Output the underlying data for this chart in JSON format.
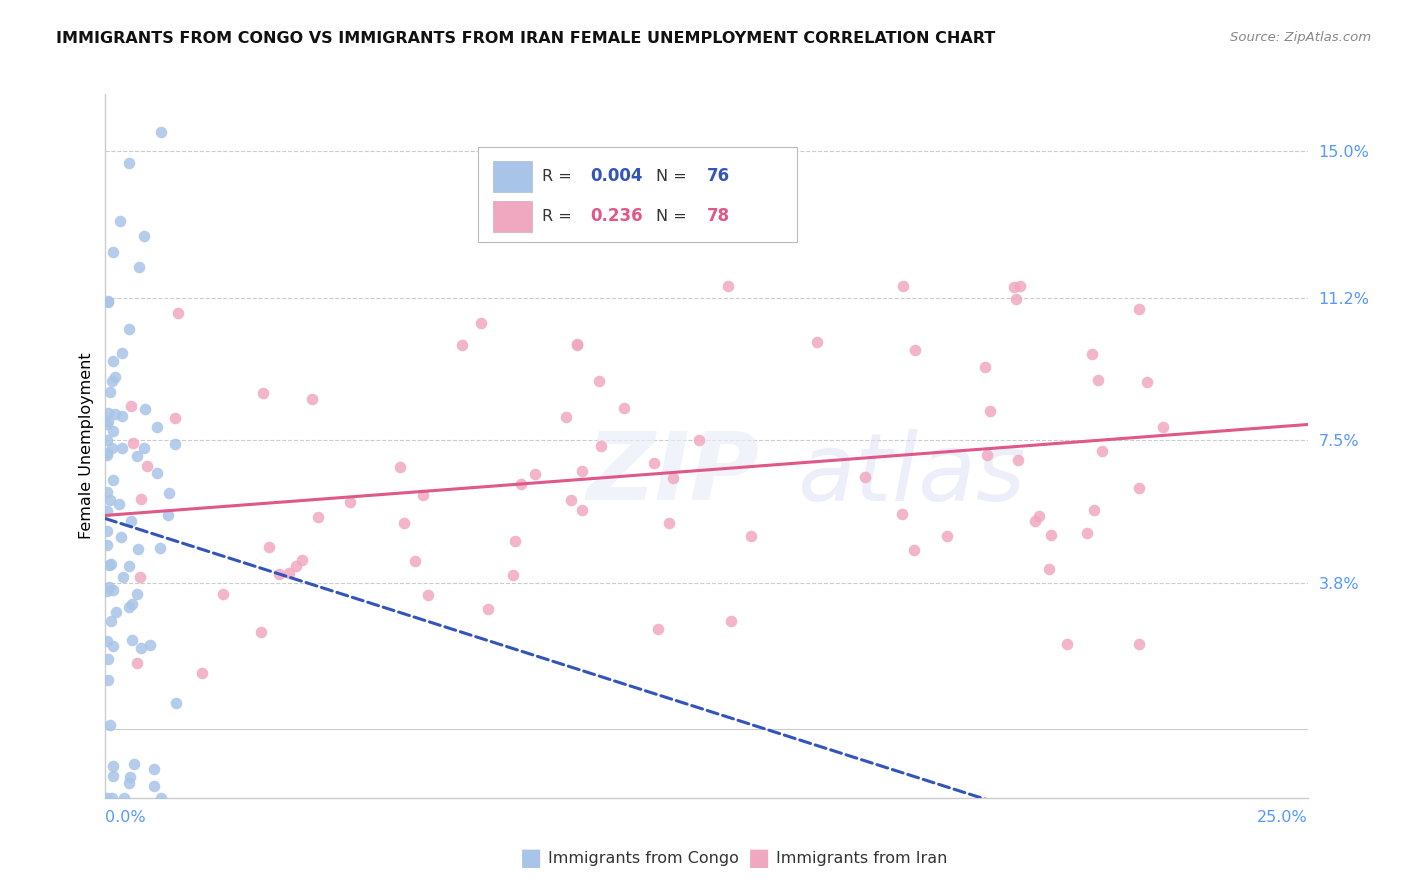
{
  "title": "IMMIGRANTS FROM CONGO VS IMMIGRANTS FROM IRAN FEMALE UNEMPLOYMENT CORRELATION CHART",
  "source": "Source: ZipAtlas.com",
  "ylabel": "Female Unemployment",
  "xlim": [
    0.0,
    0.25
  ],
  "ylim": [
    -0.018,
    0.165
  ],
  "yticks": [
    0.0,
    0.038,
    0.075,
    0.112,
    0.15
  ],
  "ytick_labels": [
    "",
    "3.8%",
    "7.5%",
    "11.2%",
    "15.0%"
  ],
  "xtick_left_label": "0.0%",
  "xtick_right_label": "25.0%",
  "legend1_R": "0.004",
  "legend1_N": "76",
  "legend2_R": "0.236",
  "legend2_N": "78",
  "congo_color": "#a8c4e8",
  "iran_color": "#f0a8c0",
  "congo_line_color": "#3355bb",
  "iran_line_color": "#e05888",
  "grid_color": "#cccccc",
  "axis_label_color": "#5599ff",
  "background_color": "#ffffff",
  "title_fontsize": 11.5,
  "source_fontsize": 9.5,
  "tick_fontsize": 11.5,
  "ylabel_fontsize": 11.5,
  "legend_fontsize": 11.5
}
